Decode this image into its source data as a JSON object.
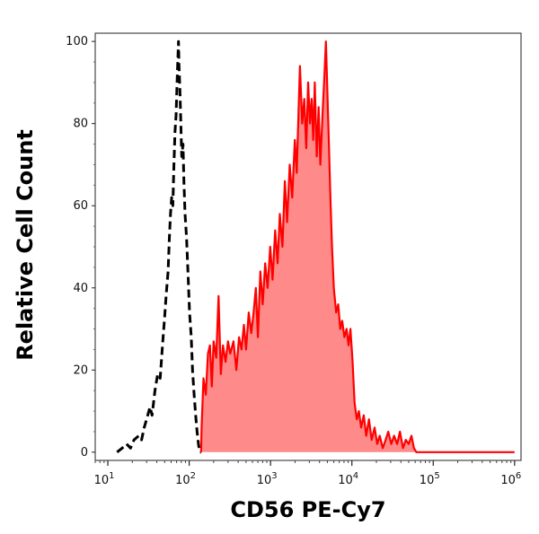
{
  "chart_data": {
    "type": "area",
    "title": "",
    "xlabel": "CD56 PE-Cy7",
    "ylabel": "Relative Cell Count",
    "x_scale": "log",
    "xlim": [
      7,
      1200000
    ],
    "ylim": [
      -2,
      102
    ],
    "x_ticks": [
      {
        "value": 10,
        "base": "10",
        "exp": "1"
      },
      {
        "value": 100,
        "base": "10",
        "exp": "2"
      },
      {
        "value": 1000,
        "base": "10",
        "exp": "3"
      },
      {
        "value": 10000,
        "base": "10",
        "exp": "4"
      },
      {
        "value": 100000,
        "base": "10",
        "exp": "5"
      },
      {
        "value": 1000000,
        "base": "10",
        "exp": "6"
      }
    ],
    "y_ticks": [
      0,
      20,
      40,
      60,
      80,
      100
    ],
    "grid": false,
    "legend": "none",
    "series": [
      {
        "style": "dashed",
        "color": "#000000",
        "fill": "none",
        "points": [
          [
            13,
            0
          ],
          [
            15,
            1
          ],
          [
            17,
            2
          ],
          [
            19,
            1
          ],
          [
            21,
            3
          ],
          [
            24,
            4
          ],
          [
            26,
            3
          ],
          [
            28,
            6
          ],
          [
            30,
            8
          ],
          [
            33,
            11
          ],
          [
            35,
            9
          ],
          [
            38,
            15
          ],
          [
            41,
            19
          ],
          [
            44,
            18
          ],
          [
            47,
            26
          ],
          [
            50,
            33
          ],
          [
            52,
            38
          ],
          [
            55,
            44
          ],
          [
            57,
            52
          ],
          [
            59,
            58
          ],
          [
            61,
            62
          ],
          [
            63,
            60
          ],
          [
            65,
            70
          ],
          [
            67,
            78
          ],
          [
            69,
            82
          ],
          [
            71,
            90
          ],
          [
            73,
            97
          ],
          [
            74,
            100
          ],
          [
            75,
            94
          ],
          [
            77,
            88
          ],
          [
            79,
            80
          ],
          [
            81,
            72
          ],
          [
            84,
            75
          ],
          [
            86,
            66
          ],
          [
            89,
            58
          ],
          [
            93,
            52
          ],
          [
            97,
            43
          ],
          [
            101,
            34
          ],
          [
            106,
            28
          ],
          [
            110,
            20
          ],
          [
            115,
            14
          ],
          [
            120,
            9
          ],
          [
            125,
            5
          ],
          [
            130,
            2
          ],
          [
            135,
            0
          ],
          [
            140,
            0
          ]
        ]
      },
      {
        "style": "solid",
        "color": "#ff0000",
        "fill": "#ff8a8a",
        "points": [
          [
            140,
            0
          ],
          [
            142,
            6
          ],
          [
            150,
            18
          ],
          [
            160,
            14
          ],
          [
            170,
            24
          ],
          [
            180,
            26
          ],
          [
            190,
            16
          ],
          [
            200,
            27
          ],
          [
            215,
            23
          ],
          [
            230,
            38
          ],
          [
            245,
            19
          ],
          [
            260,
            26
          ],
          [
            280,
            22
          ],
          [
            300,
            27
          ],
          [
            320,
            24
          ],
          [
            350,
            27
          ],
          [
            380,
            20
          ],
          [
            410,
            28
          ],
          [
            440,
            25
          ],
          [
            470,
            31
          ],
          [
            500,
            25
          ],
          [
            540,
            34
          ],
          [
            580,
            29
          ],
          [
            620,
            34
          ],
          [
            660,
            40
          ],
          [
            700,
            28
          ],
          [
            750,
            44
          ],
          [
            800,
            36
          ],
          [
            860,
            46
          ],
          [
            920,
            40
          ],
          [
            990,
            50
          ],
          [
            1060,
            42
          ],
          [
            1140,
            54
          ],
          [
            1220,
            46
          ],
          [
            1300,
            58
          ],
          [
            1400,
            50
          ],
          [
            1500,
            66
          ],
          [
            1600,
            56
          ],
          [
            1720,
            70
          ],
          [
            1850,
            62
          ],
          [
            1990,
            76
          ],
          [
            2100,
            68
          ],
          [
            2200,
            82
          ],
          [
            2300,
            94
          ],
          [
            2450,
            80
          ],
          [
            2600,
            86
          ],
          [
            2750,
            74
          ],
          [
            2900,
            90
          ],
          [
            3050,
            80
          ],
          [
            3200,
            86
          ],
          [
            3350,
            76
          ],
          [
            3500,
            90
          ],
          [
            3700,
            72
          ],
          [
            3900,
            84
          ],
          [
            4100,
            70
          ],
          [
            4350,
            82
          ],
          [
            4600,
            92
          ],
          [
            4800,
            100
          ],
          [
            5000,
            88
          ],
          [
            5200,
            76
          ],
          [
            5450,
            62
          ],
          [
            5700,
            50
          ],
          [
            6000,
            40
          ],
          [
            6400,
            34
          ],
          [
            6800,
            36
          ],
          [
            7200,
            30
          ],
          [
            7600,
            32
          ],
          [
            8100,
            28
          ],
          [
            8600,
            30
          ],
          [
            9100,
            26
          ],
          [
            9600,
            30
          ],
          [
            10200,
            22
          ],
          [
            10800,
            12
          ],
          [
            11500,
            8
          ],
          [
            12200,
            10
          ],
          [
            13000,
            6
          ],
          [
            14000,
            9
          ],
          [
            15000,
            4
          ],
          [
            16200,
            8
          ],
          [
            17500,
            3
          ],
          [
            19000,
            6
          ],
          [
            20500,
            2
          ],
          [
            22000,
            4
          ],
          [
            24000,
            1
          ],
          [
            26000,
            3
          ],
          [
            28000,
            5
          ],
          [
            30500,
            2
          ],
          [
            33000,
            4
          ],
          [
            36000,
            2
          ],
          [
            39000,
            5
          ],
          [
            42500,
            1
          ],
          [
            46000,
            3
          ],
          [
            50000,
            2
          ],
          [
            54000,
            4
          ],
          [
            58000,
            1
          ],
          [
            62000,
            0
          ],
          [
            70000,
            0
          ],
          [
            100000,
            0
          ],
          [
            200000,
            0
          ],
          [
            500000,
            0
          ],
          [
            1000000,
            0
          ]
        ]
      }
    ]
  }
}
